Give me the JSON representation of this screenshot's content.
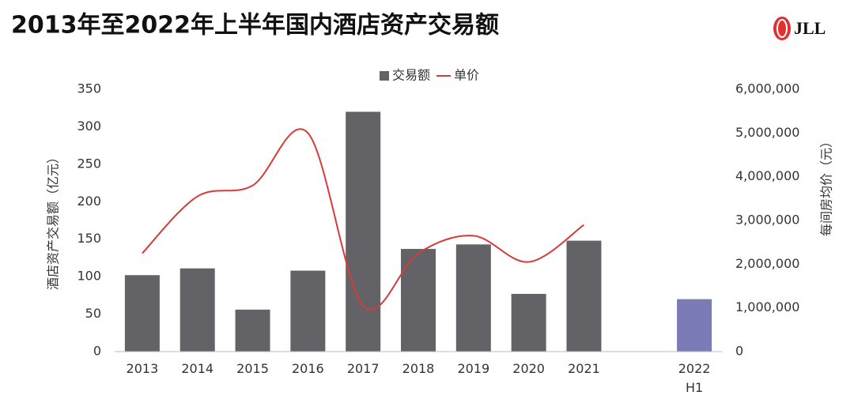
{
  "title": "2013年至2022年上半年国内酒店资产交易额",
  "logo": "JLL",
  "chart_data": {
    "type": "bar-line",
    "categories": [
      "2013",
      "2014",
      "2015",
      "2016",
      "2017",
      "2018",
      "2019",
      "2020",
      "2021",
      null,
      "2022\nH1"
    ],
    "series": [
      {
        "name": "交易额",
        "type": "bar",
        "color": "#636367",
        "colors": [
          "#636367",
          "#636367",
          "#636367",
          "#636367",
          "#636367",
          "#636367",
          "#636367",
          "#636367",
          "#636367",
          "#636367",
          "#7b7bb8"
        ],
        "values": [
          102,
          111,
          56,
          108,
          320,
          137,
          143,
          77,
          148,
          null,
          70
        ]
      },
      {
        "name": "单价",
        "type": "line",
        "axis": "y2",
        "color": "#d63a3a",
        "smooth": true,
        "values": [
          2250000,
          3550000,
          3800000,
          5000000,
          1050000,
          2250000,
          2650000,
          2050000,
          2900000,
          null,
          null
        ]
      }
    ],
    "y_label": "酒店资产交易额（亿元）",
    "y2_label": "每间房均价（元）",
    "ylim": [
      0,
      350
    ],
    "yticks": [
      0,
      50,
      100,
      150,
      200,
      250,
      300,
      350
    ],
    "y2lim": [
      0,
      6000000
    ],
    "y2ticks": [
      0,
      {
        "value": 1000000,
        "label": "1,000,000"
      },
      {
        "value": 2000000,
        "label": "2,000,000"
      },
      {
        "value": 3000000,
        "label": "3,000,000"
      },
      {
        "value": 4000000,
        "label": "4,000,000"
      },
      {
        "value": 5000000,
        "label": "5,000,000"
      },
      {
        "value": 6000000,
        "label": "6,000,000"
      }
    ],
    "legend": "top",
    "grid": false
  }
}
